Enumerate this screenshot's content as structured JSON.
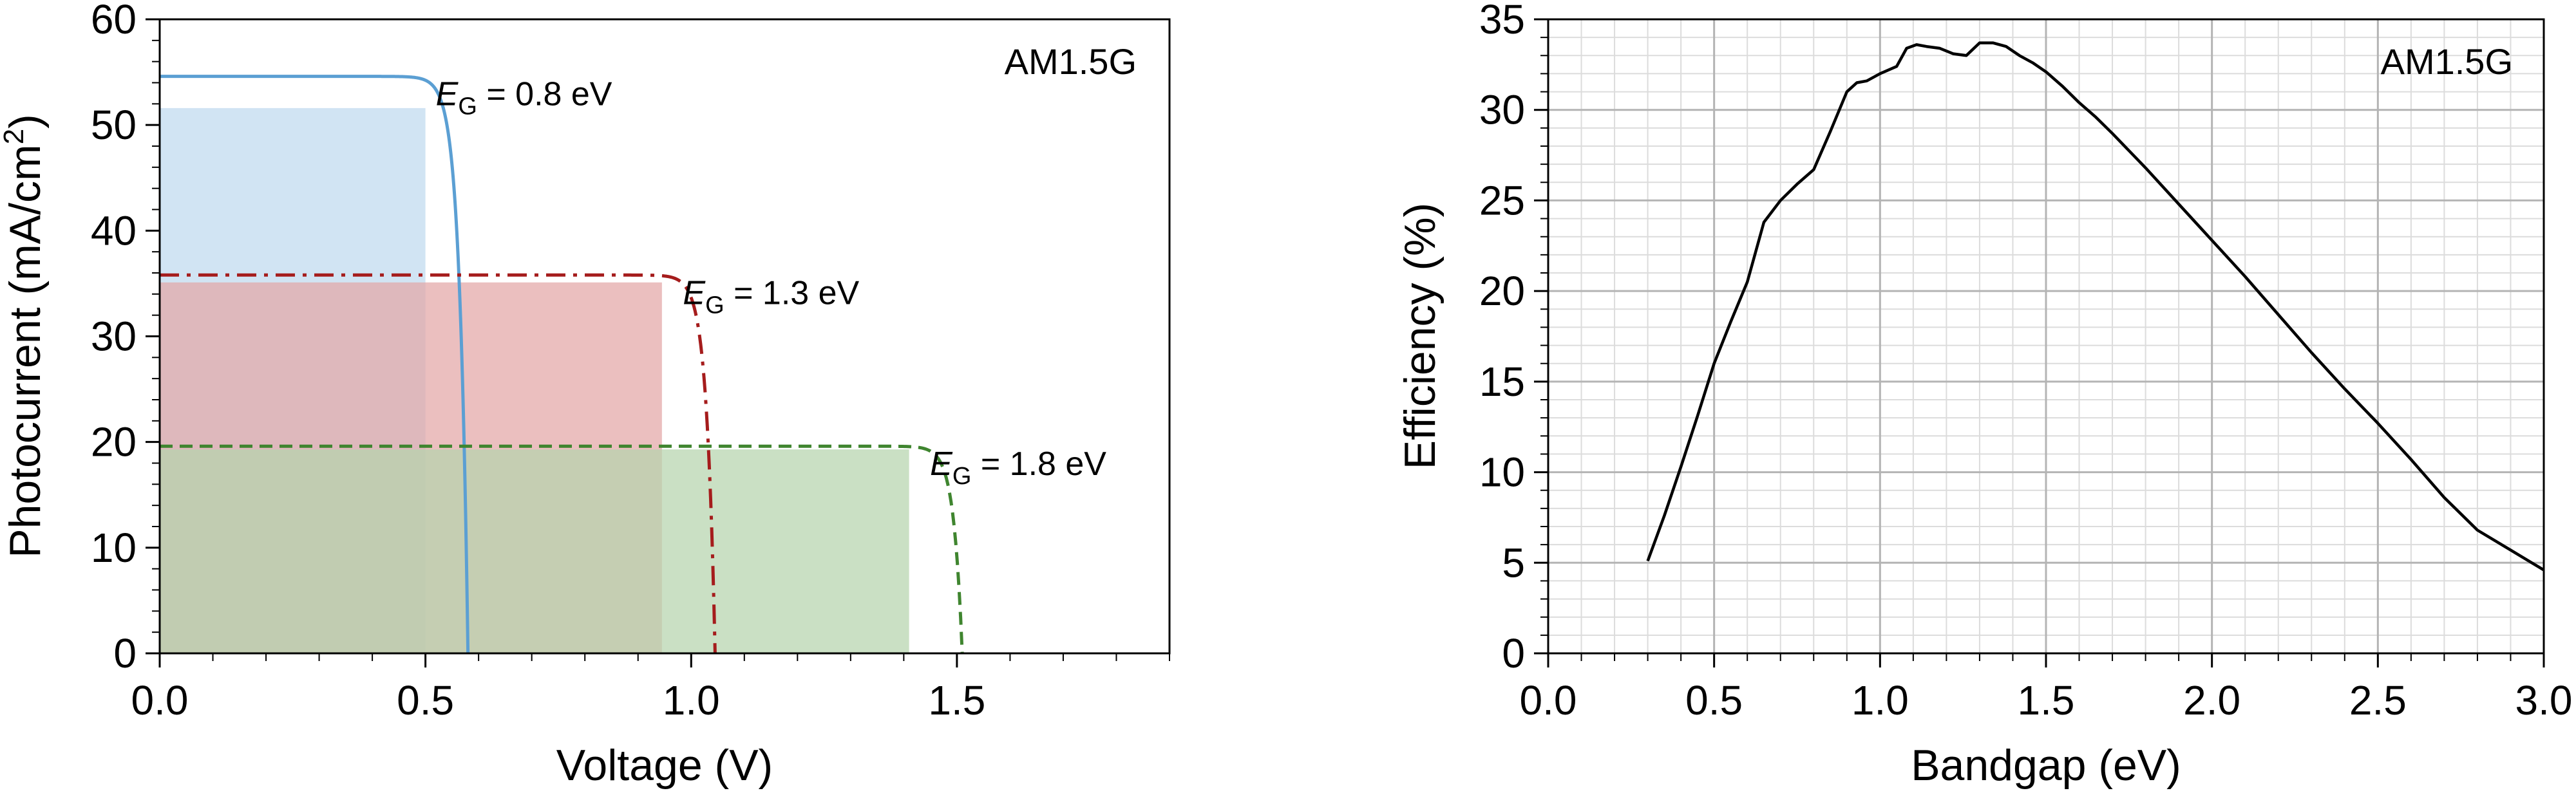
{
  "chart_data": [
    {
      "type": "line",
      "xlabel": "Voltage (V)",
      "ylabel": "Photocurrent (mA/cm²)",
      "ylabel_parts": {
        "main": "Photocurrent (mA/cm",
        "sup": "2",
        "end": ")"
      },
      "xlim": [
        0,
        1.9
      ],
      "ylim": [
        0,
        60
      ],
      "xticks": [
        0.0,
        0.5,
        1.0,
        1.5
      ],
      "xtick_labels": [
        "0.0",
        "0.5",
        "1.0",
        "1.5"
      ],
      "yticks": [
        0,
        10,
        20,
        30,
        40,
        50,
        60
      ],
      "ytick_labels": [
        "0",
        "10",
        "20",
        "30",
        "40",
        "50",
        "60"
      ],
      "annotation": "AM1.5G",
      "series": [
        {
          "label_prefix": "E",
          "label_sub": "G",
          "label_value": " = 0.8 eV",
          "color": "#5b9fd3",
          "style": "solid",
          "jsc": 54.6,
          "voc": 0.58,
          "vt": 0.016,
          "vmp": 0.5,
          "jmp": 51.6,
          "fill": "#bfd9ee"
        },
        {
          "label_prefix": "E",
          "label_sub": "G",
          "label_value": " = 1.3 eV",
          "color": "#a51c1c",
          "style": "dashdot",
          "jsc": 35.8,
          "voc": 1.045,
          "vt": 0.016,
          "vmp": 0.945,
          "jmp": 35.1,
          "fill": "#e3a6a6"
        },
        {
          "label_prefix": "E",
          "label_sub": "G",
          "label_value": " = 1.8 eV",
          "color": "#3f852f",
          "style": "dashed",
          "jsc": 19.6,
          "voc": 1.51,
          "vt": 0.016,
          "vmp": 1.41,
          "jmp": 19.3,
          "fill": "#b6d4ad"
        }
      ]
    },
    {
      "type": "line",
      "xlabel": "Bandgap (eV)",
      "ylabel": "Efficiency (%)",
      "xlim": [
        0,
        3.0
      ],
      "ylim": [
        0,
        35
      ],
      "xticks": [
        0.0,
        0.5,
        1.0,
        1.5,
        2.0,
        2.5,
        3.0
      ],
      "xtick_labels": [
        "0.0",
        "0.5",
        "1.0",
        "1.5",
        "2.0",
        "2.5",
        "3.0"
      ],
      "yticks": [
        0,
        5,
        10,
        15,
        20,
        25,
        30,
        35
      ],
      "ytick_labels": [
        "0",
        "5",
        "10",
        "15",
        "20",
        "25",
        "30",
        "35"
      ],
      "annotation": "AM1.5G",
      "grid": true,
      "series": [
        {
          "color": "#000000",
          "x": [
            0.3,
            0.35,
            0.4,
            0.45,
            0.5,
            0.55,
            0.6,
            0.65,
            0.7,
            0.75,
            0.8,
            0.85,
            0.9,
            0.93,
            0.96,
            1.0,
            1.05,
            1.08,
            1.11,
            1.14,
            1.18,
            1.22,
            1.26,
            1.3,
            1.34,
            1.38,
            1.42,
            1.46,
            1.5,
            1.55,
            1.6,
            1.65,
            1.7,
            1.8,
            1.9,
            2.0,
            2.1,
            2.2,
            2.3,
            2.4,
            2.5,
            2.6,
            2.7,
            2.8,
            2.9,
            3.0
          ],
          "y": [
            5.1,
            7.6,
            10.3,
            13.1,
            16.0,
            18.3,
            20.5,
            23.8,
            25.0,
            25.9,
            26.7,
            28.8,
            31.0,
            31.5,
            31.6,
            32.0,
            32.4,
            33.4,
            33.6,
            33.5,
            33.4,
            33.1,
            33.0,
            33.7,
            33.7,
            33.5,
            33.0,
            32.6,
            32.1,
            31.3,
            30.4,
            29.6,
            28.7,
            26.8,
            24.8,
            22.8,
            20.8,
            18.7,
            16.6,
            14.6,
            12.7,
            10.7,
            8.6,
            6.8,
            5.7,
            4.6
          ]
        }
      ]
    }
  ]
}
